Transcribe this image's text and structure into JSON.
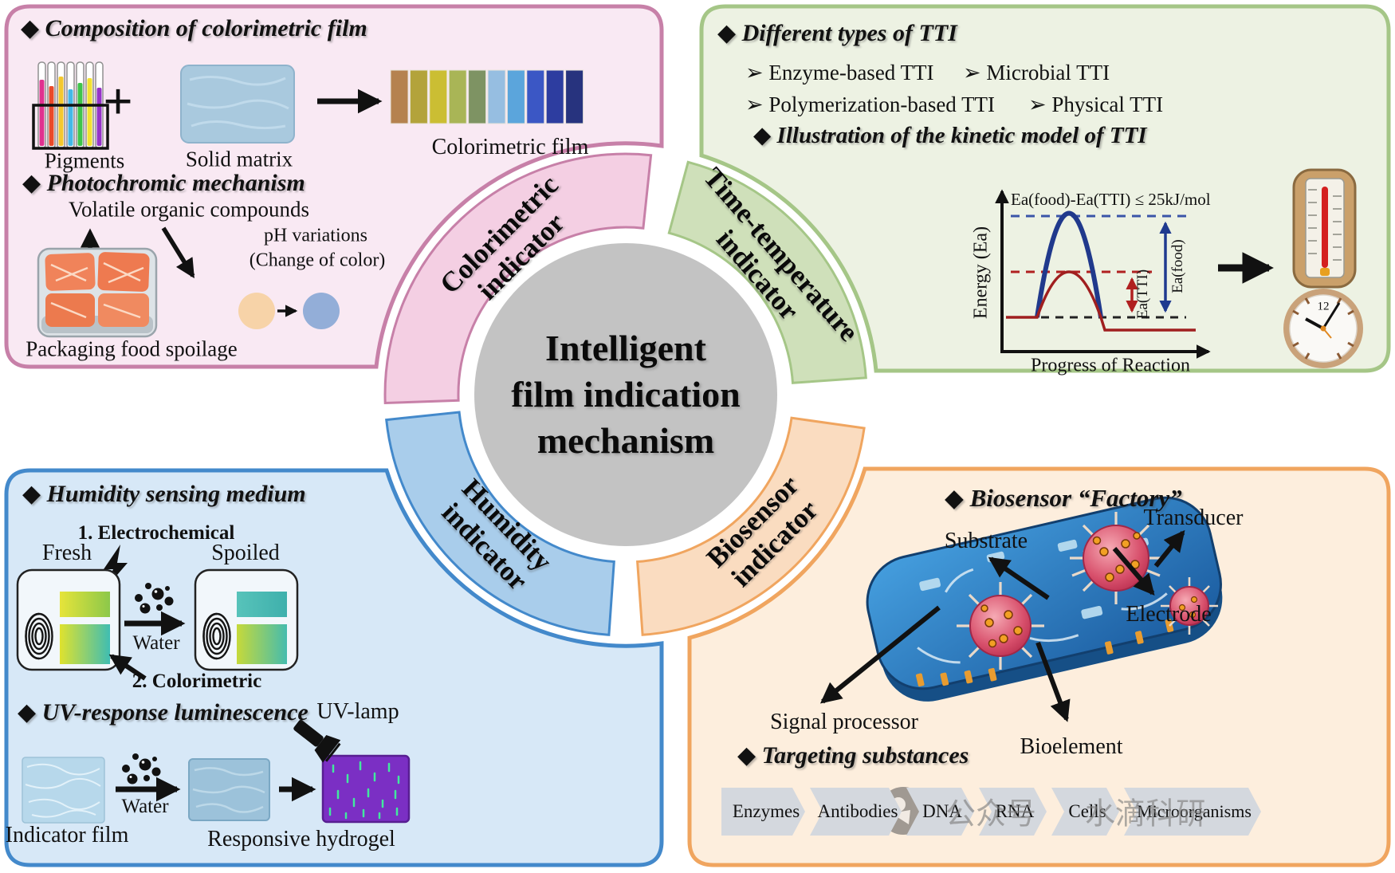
{
  "center": {
    "line1": "Intelligent",
    "line2": "film indication",
    "line3": "mechanism"
  },
  "palette": {
    "tl_fill": "#f9e9f3",
    "tl_border": "#c780a8",
    "tl_wedge": "#f4cfe3",
    "tr_fill": "#edf2e3",
    "tr_border": "#a5c687",
    "tr_wedge": "#cfe0ba",
    "bl_fill": "#d7e8f7",
    "bl_border": "#4389cb",
    "bl_wedge": "#a9cdeb",
    "br_fill": "#fdeedd",
    "br_border": "#f0a55f",
    "br_wedge": "#fadcc0",
    "circle": "#c3c3c3"
  },
  "tl": {
    "heading1": "◆ Composition of colorimetric film",
    "plus": "+",
    "pigments_label": "Pigments",
    "solid_matrix_label": "Solid matrix",
    "film_label": "Colorimetric film",
    "tube_colors": [
      "#e0318f",
      "#ea4a2a",
      "#f4c82e",
      "#44b8e8",
      "#3ec44a",
      "#f2e230",
      "#9633c8"
    ],
    "strip_colors": [
      "#b5824f",
      "#b3a33b",
      "#cbbe33",
      "#a9b556",
      "#7e9363",
      "#96bee1",
      "#5ba5dc",
      "#3b57c5",
      "#2d3da0",
      "#27337e"
    ],
    "heading2": "◆ Photochromic mechanism",
    "voc_label": "Volatile organic compounds",
    "ph_line1": "pH variations",
    "ph_line2": "(Change of color)",
    "ph_color_from": "#f7d3a8",
    "ph_color_to": "#93aed8",
    "spoilage_label": "Packaging food spoilage",
    "wedge_line1": "Colorimetric",
    "wedge_line2": "indicator"
  },
  "tr": {
    "heading1": "◆ Different types of TTI",
    "item1": "➢  Enzyme-based TTI",
    "item2": "➢  Microbial TTI",
    "item3": "➢  Polymerization-based TTI",
    "item4": "➢  Physical TTI",
    "heading2": "◆ Illustration of the kinetic model of TTI",
    "graph": {
      "title": "Ea(food)-Ea(TTI) ≤ 25kJ/mol",
      "ylabel": "Energy (Ea)",
      "xlabel": "Progress of Reaction",
      "ea_tti": "Ea(TTI)",
      "ea_food": "Ea(food)"
    },
    "clock_12": "12",
    "wedge_line1": "Time-temperature",
    "wedge_line2": "indicator"
  },
  "bl": {
    "heading1": "◆ Humidity sensing medium",
    "electro_label": "1. Electrochemical",
    "fresh_label": "Fresh",
    "spoiled_label": "Spoiled",
    "water_label1": "Water",
    "colorimetric_label": "2. Colorimetric",
    "heading2": "◆ UV-response luminescence",
    "uv_lamp_label": "UV-lamp",
    "indicator_film_label": "Indicator film",
    "water_label2": "Water",
    "responsive_label": "Responsive hydrogel",
    "fresh_strip1": [
      "#e6e43a",
      "#8cc84a"
    ],
    "fresh_strip2": [
      "#dfe22e",
      "#3fbdb2"
    ],
    "spoiled_strip1": [
      "#57c3ba",
      "#3fb0ac"
    ],
    "spoiled_strip2": [
      "#c6d93a",
      "#45bcae"
    ],
    "wedge_line1": "Humidity",
    "wedge_line2": "indicator"
  },
  "br": {
    "heading1": "◆ Biosensor “Factory”",
    "substrate_label": "Substrate",
    "transducer_label": "Transducer",
    "signal_label": "Signal processor",
    "electrode_label": "Electrode",
    "bioelement_label": "Bioelement",
    "heading2": "◆ Targeting substances",
    "banner": [
      "Enzymes",
      "Antibodies",
      "DNA",
      "RNA",
      "Cells",
      "Microorganisms"
    ],
    "watermark_text1": "公众号",
    "watermark_text2": "水滴科研",
    "wedge_line1": "Biosensor",
    "wedge_line2": "indicator"
  }
}
